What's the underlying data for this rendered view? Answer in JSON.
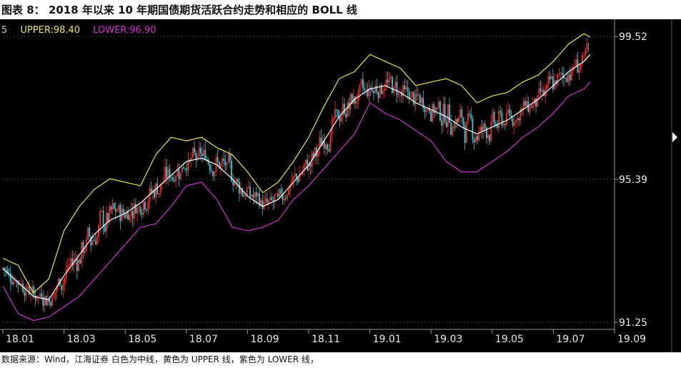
{
  "figure_title": "图表 8： 2018 年以来 10 年期国债期货活跃合约走势和相应的 BOLL 线",
  "source_note": "数据来源：Wind，江海证券 白色为中线，黄色为 UPPER 线，紫色为 LOWER 线，",
  "legend": {
    "prefix": "5",
    "upper": "UPPER:98.40",
    "lower": "LOWER:96.90"
  },
  "colors": {
    "background": "#000000",
    "up_candle": "#ff2b2b",
    "down_candle": "#39c9d8",
    "mid_line": "#ffffff",
    "upper_line": "#e6e64a",
    "lower_line": "#d22fd2",
    "grid": "#3a3a3a"
  },
  "chart_data": {
    "type": "line",
    "title": "",
    "xlabel": "",
    "ylabel": "",
    "x_ticks": [
      "18.01",
      "18.03",
      "18.05",
      "18.07",
      "18.09",
      "18.11",
      "19.01",
      "19.03",
      "19.05",
      "19.07",
      "19.09"
    ],
    "y_ticks": [
      91.25,
      95.39,
      99.52
    ],
    "ylim": [
      91.25,
      99.52
    ],
    "xlim": [
      0,
      20
    ],
    "grid": true,
    "legend_position": "top-left",
    "series": [
      {
        "name": "UPPER",
        "x": [
          0,
          0.5,
          1,
          1.5,
          2,
          2.5,
          3,
          3.5,
          4,
          4.5,
          5,
          5.5,
          6,
          6.5,
          7,
          7.5,
          8,
          8.5,
          9,
          9.5,
          10,
          10.5,
          11,
          11.5,
          12,
          12.5,
          13,
          13.5,
          14,
          14.5,
          15,
          15.5,
          16,
          16.5,
          17,
          17.5,
          18,
          18.5,
          19,
          19.2
        ],
        "values": [
          93.1,
          92.9,
          92.1,
          92.5,
          93.9,
          94.6,
          95.1,
          95.4,
          95.3,
          95.2,
          96.1,
          96.6,
          96.5,
          96.6,
          96.3,
          96.1,
          95.6,
          95.0,
          95.3,
          95.9,
          96.6,
          97.5,
          98.3,
          98.5,
          99.0,
          98.8,
          98.6,
          98.1,
          98.2,
          98.3,
          98.1,
          97.6,
          97.8,
          97.9,
          98.2,
          98.4,
          98.8,
          99.3,
          99.6,
          99.5
        ]
      },
      {
        "name": "MID",
        "x": [
          0,
          0.5,
          1,
          1.5,
          2,
          2.5,
          3,
          3.5,
          4,
          4.5,
          5,
          5.5,
          6,
          6.5,
          7,
          7.5,
          8,
          8.5,
          9,
          9.5,
          10,
          10.5,
          11,
          11.5,
          12,
          12.5,
          13,
          13.5,
          14,
          14.5,
          15,
          15.5,
          16,
          16.5,
          17,
          17.5,
          18,
          18.5,
          19,
          19.2
        ],
        "values": [
          92.8,
          92.4,
          92.0,
          91.9,
          92.6,
          93.2,
          93.8,
          94.2,
          94.4,
          94.7,
          95.1,
          95.5,
          95.9,
          96.0,
          95.8,
          95.4,
          94.9,
          94.6,
          94.8,
          95.3,
          95.8,
          96.5,
          97.2,
          97.7,
          98.0,
          98.1,
          97.9,
          97.6,
          97.4,
          97.2,
          96.9,
          96.7,
          96.9,
          97.1,
          97.4,
          97.7,
          98.1,
          98.5,
          98.8,
          99.0
        ]
      },
      {
        "name": "LOWER",
        "x": [
          0,
          0.5,
          1,
          1.5,
          2,
          2.5,
          3,
          3.5,
          4,
          4.5,
          5,
          5.5,
          6,
          6.5,
          7,
          7.5,
          8,
          8.5,
          9,
          9.5,
          10,
          10.5,
          11,
          11.5,
          12,
          12.5,
          13,
          13.5,
          14,
          14.5,
          15,
          15.5,
          16,
          16.5,
          17,
          17.5,
          18,
          18.5,
          19,
          19.2
        ],
        "values": [
          92.3,
          91.5,
          91.3,
          91.4,
          91.7,
          92.0,
          92.5,
          93.0,
          93.5,
          94.0,
          94.1,
          94.6,
          95.2,
          95.3,
          94.8,
          94.0,
          93.9,
          94.0,
          94.2,
          94.8,
          95.2,
          95.7,
          96.2,
          96.7,
          97.6,
          97.3,
          97.1,
          96.8,
          96.5,
          95.9,
          95.6,
          95.6,
          95.9,
          96.2,
          96.6,
          96.9,
          97.3,
          97.8,
          98.0,
          98.2
        ]
      }
    ]
  }
}
